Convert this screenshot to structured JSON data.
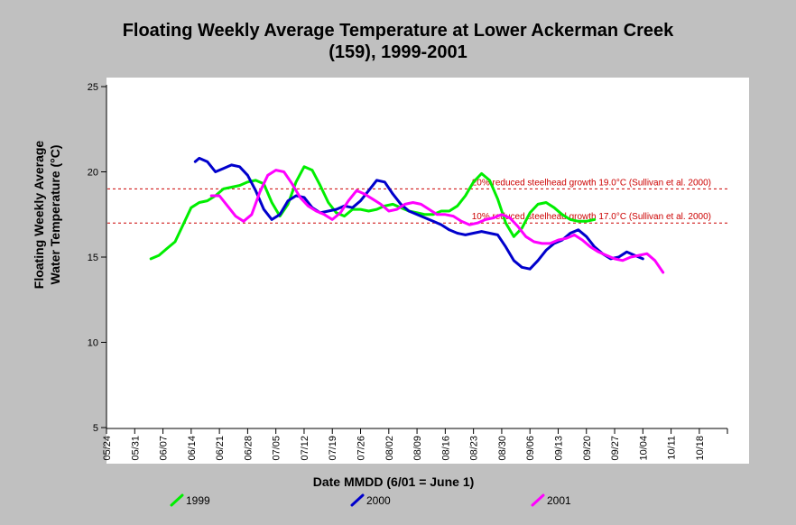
{
  "chart_data": {
    "type": "line",
    "title": "Floating Weekly Average Temperature at Lower Ackerman Creek (159), 1999-2001",
    "title_lines": [
      "Floating Weekly Average Temperature at Lower Ackerman Creek",
      "(159), 1999-2001"
    ],
    "xlabel": "Date MMDD (6/01 = June 1)",
    "ylabel_lines": [
      "Floating Weekly Average",
      "Water Temperature (°C)"
    ],
    "x_ticks": [
      "05/24",
      "05/31",
      "06/07",
      "06/14",
      "06/21",
      "06/28",
      "07/05",
      "07/12",
      "07/19",
      "07/26",
      "08/02",
      "08/09",
      "08/16",
      "08/23",
      "08/30",
      "09/06",
      "09/13",
      "09/20",
      "09/27",
      "10/04",
      "10/11",
      "10/18"
    ],
    "ylim": [
      5,
      25
    ],
    "y_ticks": [
      5,
      10,
      15,
      20,
      25
    ],
    "grid": false,
    "legend_position": "bottom",
    "reference_lines": [
      {
        "y": 19.0,
        "label": "20% reduced steelhead growth 19.0°C (Sullivan et al. 2000)",
        "color": "#cc0000"
      },
      {
        "y": 17.0,
        "label": "10% reduced steelhead growth 17.0°C (Sullivan et al. 2000)",
        "color": "#cc0000"
      }
    ],
    "series": [
      {
        "name": "1999",
        "color": "#00ee00",
        "x": [
          "06/04",
          "06/06",
          "06/08",
          "06/10",
          "06/12",
          "06/14",
          "06/16",
          "06/18",
          "06/20",
          "06/22",
          "06/24",
          "06/26",
          "06/28",
          "06/30",
          "07/02",
          "07/04",
          "07/06",
          "07/08",
          "07/10",
          "07/12",
          "07/14",
          "07/16",
          "07/18",
          "07/20",
          "07/22",
          "07/24",
          "07/26",
          "07/28",
          "07/30",
          "08/01",
          "08/03",
          "08/05",
          "08/07",
          "08/09",
          "08/11",
          "08/13",
          "08/15",
          "08/17",
          "08/19",
          "08/21",
          "08/23",
          "08/25",
          "08/27",
          "08/29",
          "08/31",
          "09/02",
          "09/04",
          "09/06",
          "09/08",
          "09/10",
          "09/12",
          "09/14",
          "09/16",
          "09/18",
          "09/20",
          "09/22"
        ],
        "y": [
          14.9,
          15.1,
          15.5,
          15.9,
          16.9,
          17.9,
          18.2,
          18.3,
          18.6,
          19.0,
          19.1,
          19.2,
          19.4,
          19.5,
          19.3,
          18.2,
          17.4,
          18.1,
          19.4,
          20.3,
          20.1,
          19.2,
          18.2,
          17.6,
          17.4,
          17.8,
          17.8,
          17.7,
          17.8,
          18.0,
          18.1,
          17.9,
          17.7,
          17.6,
          17.5,
          17.5,
          17.7,
          17.7,
          18.0,
          18.6,
          19.4,
          19.9,
          19.5,
          18.4,
          17.0,
          16.2,
          16.7,
          17.6,
          18.1,
          18.2,
          17.9,
          17.5,
          17.2,
          17.1,
          17.1,
          17.2
        ]
      },
      {
        "name": "2000",
        "color": "#0000cc",
        "x": [
          "06/15",
          "06/16",
          "06/18",
          "06/20",
          "06/22",
          "06/24",
          "06/26",
          "06/28",
          "06/30",
          "07/02",
          "07/04",
          "07/06",
          "07/08",
          "07/10",
          "07/12",
          "07/14",
          "07/16",
          "07/18",
          "07/20",
          "07/22",
          "07/24",
          "07/26",
          "07/28",
          "07/30",
          "08/01",
          "08/03",
          "08/05",
          "08/07",
          "08/09",
          "08/11",
          "08/13",
          "08/15",
          "08/17",
          "08/19",
          "08/21",
          "08/23",
          "08/25",
          "08/27",
          "08/29",
          "08/31",
          "09/02",
          "09/04",
          "09/06",
          "09/08",
          "09/10",
          "09/12",
          "09/14",
          "09/16",
          "09/18",
          "09/20",
          "09/22",
          "09/24",
          "09/26",
          "09/28",
          "09/30",
          "10/02",
          "10/04"
        ],
        "y": [
          20.6,
          20.8,
          20.6,
          20.0,
          20.2,
          20.4,
          20.3,
          19.8,
          18.9,
          17.8,
          17.2,
          17.5,
          18.3,
          18.6,
          18.5,
          17.9,
          17.6,
          17.7,
          17.8,
          18.0,
          17.9,
          18.3,
          18.9,
          19.5,
          19.4,
          18.7,
          18.1,
          17.7,
          17.5,
          17.3,
          17.1,
          16.9,
          16.6,
          16.4,
          16.3,
          16.4,
          16.5,
          16.4,
          16.3,
          15.6,
          14.8,
          14.4,
          14.3,
          14.8,
          15.4,
          15.8,
          16.0,
          16.4,
          16.6,
          16.2,
          15.6,
          15.2,
          14.9,
          15.0,
          15.3,
          15.1,
          14.9
        ]
      },
      {
        "name": "2001",
        "color": "#ff00ff",
        "x": [
          "06/19",
          "06/21",
          "06/23",
          "06/25",
          "06/27",
          "06/29",
          "07/01",
          "07/03",
          "07/05",
          "07/07",
          "07/09",
          "07/11",
          "07/13",
          "07/15",
          "07/17",
          "07/19",
          "07/21",
          "07/23",
          "07/25",
          "07/27",
          "07/29",
          "07/31",
          "08/02",
          "08/04",
          "08/06",
          "08/08",
          "08/10",
          "08/12",
          "08/14",
          "08/16",
          "08/18",
          "08/20",
          "08/22",
          "08/24",
          "08/26",
          "08/28",
          "08/30",
          "09/01",
          "09/03",
          "09/05",
          "09/07",
          "09/09",
          "09/11",
          "09/13",
          "09/15",
          "09/17",
          "09/19",
          "09/21",
          "09/23",
          "09/25",
          "09/27",
          "09/29",
          "10/01",
          "10/03",
          "10/05",
          "10/07",
          "10/09"
        ],
        "y": [
          18.6,
          18.6,
          18.0,
          17.4,
          17.1,
          17.5,
          18.8,
          19.8,
          20.1,
          20.0,
          19.3,
          18.5,
          18.0,
          17.7,
          17.5,
          17.2,
          17.6,
          18.3,
          18.9,
          18.7,
          18.4,
          18.1,
          17.7,
          17.8,
          18.1,
          18.2,
          18.1,
          17.8,
          17.5,
          17.5,
          17.4,
          17.1,
          16.9,
          17.0,
          17.2,
          17.3,
          17.5,
          17.3,
          16.8,
          16.2,
          15.9,
          15.8,
          15.8,
          16.0,
          16.1,
          16.3,
          16.0,
          15.6,
          15.3,
          15.1,
          14.9,
          14.8,
          15.0,
          15.1,
          15.2,
          14.8,
          14.1
        ]
      }
    ]
  }
}
